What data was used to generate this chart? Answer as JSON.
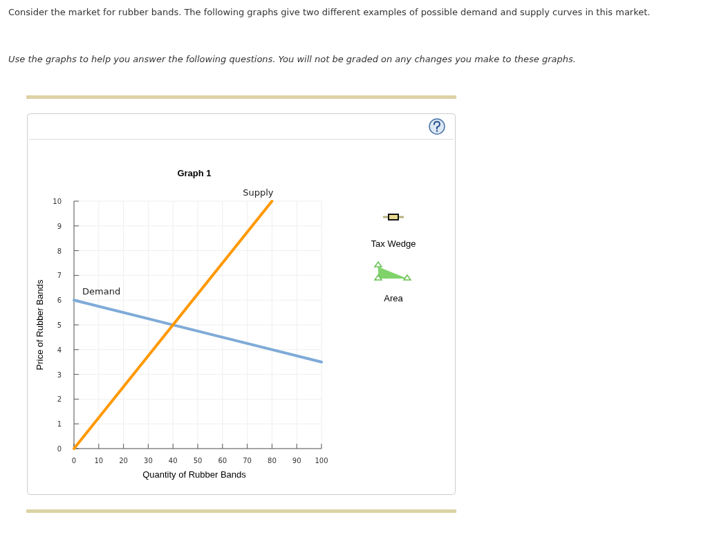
{
  "chart_data": {
    "type": "line",
    "title": "Graph 1",
    "xlabel": "Quantity of Rubber Bands",
    "ylabel": "Price of Rubber Bands",
    "series": [
      {
        "name": "Demand",
        "color": "#7fabd8",
        "x": [
          0,
          100
        ],
        "values": [
          6,
          3.5
        ]
      },
      {
        "name": "Supply",
        "color": "#ff9900",
        "x": [
          0,
          80
        ],
        "values": [
          0,
          10
        ]
      }
    ],
    "xlim": [
      0,
      100
    ],
    "xticks": [
      0,
      10,
      20,
      30,
      40,
      50,
      60,
      70,
      80,
      90,
      100
    ],
    "ylim": [
      0,
      10
    ],
    "yticks": [
      0,
      1,
      2,
      3,
      4,
      5,
      6,
      7,
      8,
      9,
      10
    ],
    "grid": true,
    "legend": false,
    "marker": "none",
    "line_style": "solid",
    "annotations": [
      "Consider the market for rubber bands. The following graphs give two different examples of possible demand and supply curves in this market.",
      "Use the graphs to help you answer the following questions. You will not be graded on any changes you make to these graphs.",
      "Tax Wedge",
      "Area"
    ]
  }
}
